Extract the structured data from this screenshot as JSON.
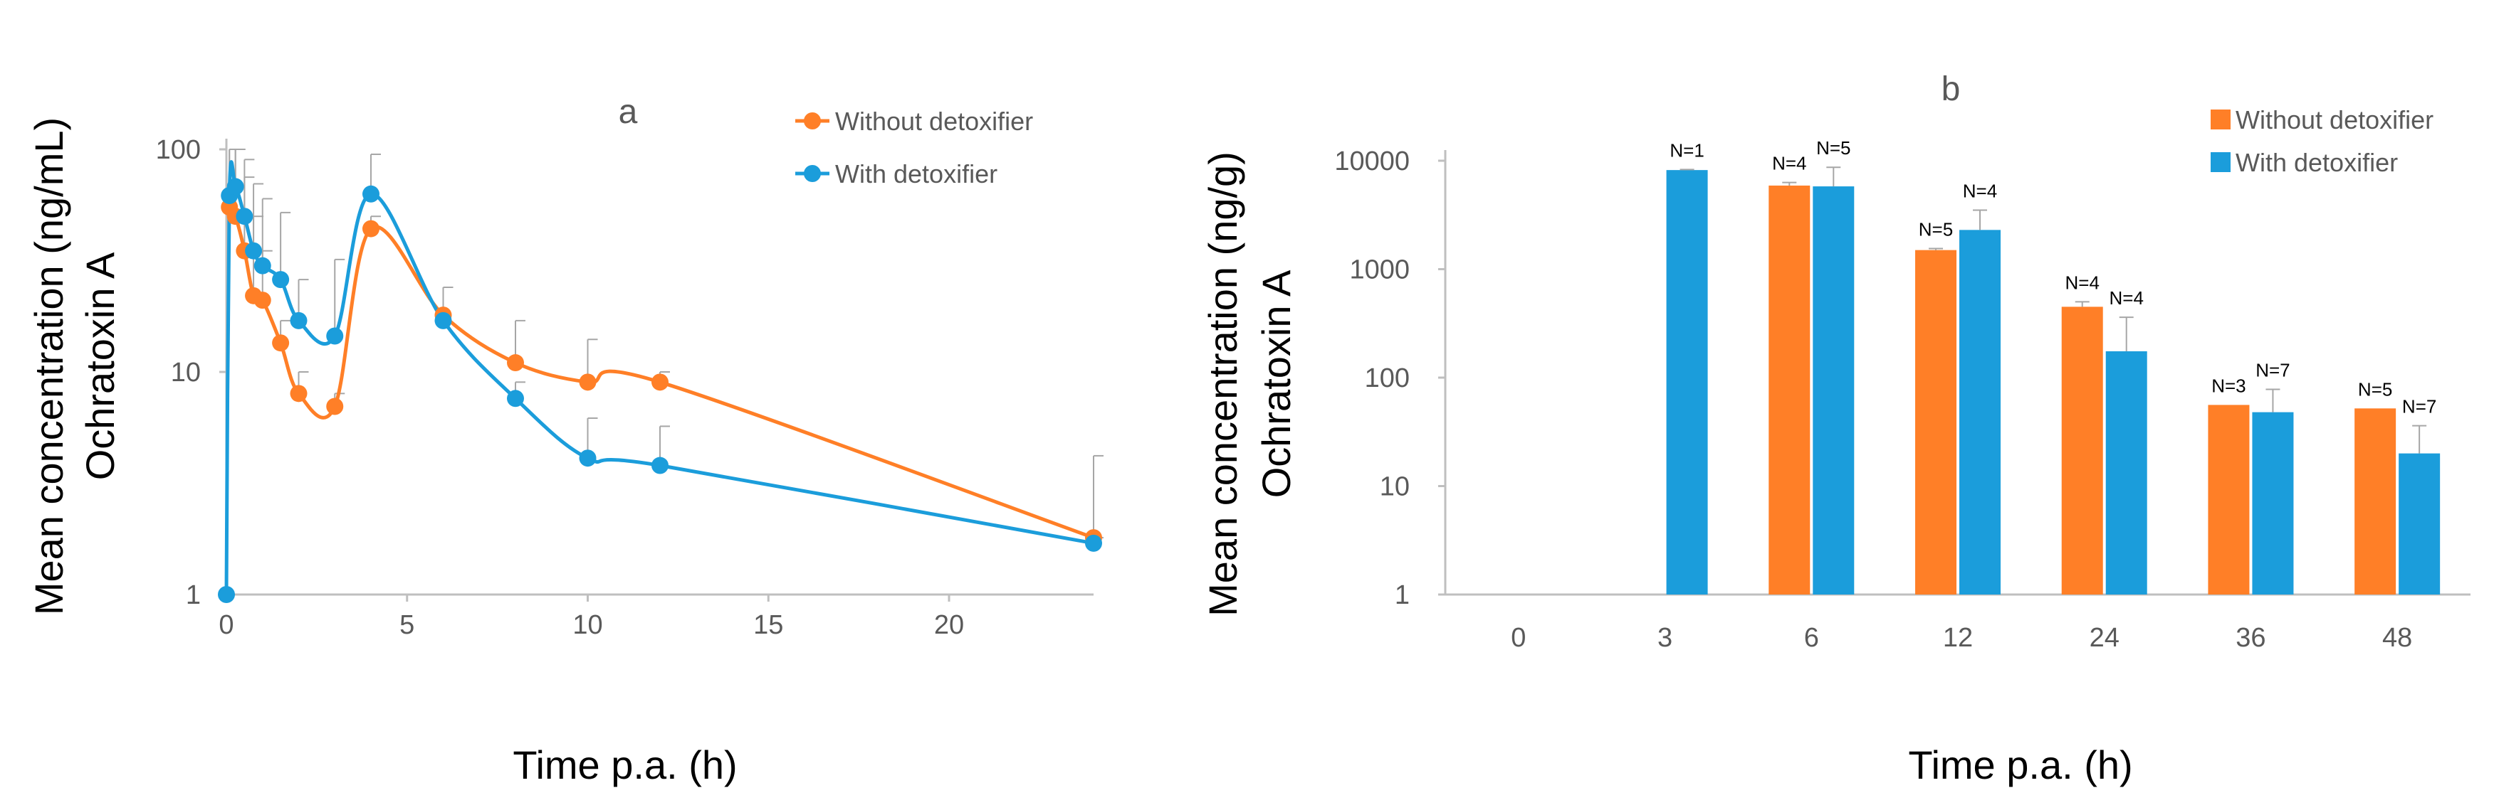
{
  "colors": {
    "without": "#FF7F27",
    "with": "#1B9DDB",
    "axis": "#BFBFBF",
    "err": "#A6A6A6"
  },
  "chart_data": [
    {
      "type": "line",
      "panel_label": "a",
      "ylabel_line1": "Mean concentration (ng/mL)",
      "ylabel_line2": "Ochratoxin A",
      "xlabel": "Time p.a. (h)",
      "yscale": "log",
      "ylim": [
        1,
        100
      ],
      "xlim": [
        0,
        24
      ],
      "x_ticks": [
        "0",
        "5",
        "10",
        "15",
        "20"
      ],
      "y_ticks": [
        "1",
        "10",
        "100"
      ],
      "legend_position": "top-right",
      "series": [
        {
          "name": "Without detoxifier",
          "x": [
            0.083,
            0.25,
            0.5,
            0.75,
            1,
            1.5,
            2,
            3,
            4,
            6,
            8,
            10,
            12,
            24
          ],
          "y": [
            55,
            50,
            35,
            22,
            21,
            13.5,
            8,
            7,
            44,
            18,
            11,
            9,
            9,
            1.8
          ],
          "err_top": [
            100,
            100,
            75,
            50,
            35,
            17,
            10,
            8,
            50,
            24,
            17,
            14,
            10,
            4.2
          ]
        },
        {
          "name": "With detoxifier",
          "x": [
            0,
            0.083,
            0.25,
            0.5,
            0.75,
            1,
            1.5,
            2,
            3,
            4,
            6,
            8,
            10,
            12,
            24
          ],
          "y": [
            1,
            62,
            68,
            50,
            35,
            30,
            26,
            17,
            14.5,
            63,
            17,
            7.6,
            4.1,
            3.8,
            1.7
          ],
          "err_top": [
            null,
            100,
            100,
            90,
            70,
            60,
            52,
            26,
            32,
            95,
            24,
            9,
            6.2,
            5.7,
            1.8
          ]
        }
      ]
    },
    {
      "type": "bar",
      "panel_label": "b",
      "ylabel_line1": "Mean concentration (ng/g)",
      "ylabel_line2": "Ochratoxin A",
      "xlabel": "Time p.a. (h)",
      "yscale": "log",
      "ylim": [
        1,
        10000
      ],
      "categories": [
        "0",
        "3",
        "6",
        "12",
        "24",
        "36",
        "48"
      ],
      "y_ticks": [
        "1",
        "10",
        "100",
        "1000",
        "10000"
      ],
      "legend_position": "top-right",
      "series": [
        {
          "name": "Without detoxifier",
          "values": [
            null,
            null,
            5900,
            1500,
            450,
            56,
            52
          ],
          "err_top": [
            null,
            null,
            6300,
            1550,
            500,
            null,
            null
          ],
          "n_labels": [
            "",
            "",
            "N=4",
            "N=5",
            "N=4",
            "N=3",
            "N=5"
          ]
        },
        {
          "name": "With detoxifier",
          "values": [
            null,
            8200,
            5800,
            2300,
            175,
            48,
            20
          ],
          "err_top": [
            null,
            8300,
            8700,
            3500,
            360,
            78,
            36
          ],
          "n_labels": [
            "",
            "N=1",
            "N=5",
            "N=4",
            "N=4",
            "N=7",
            "N=7"
          ]
        }
      ]
    }
  ]
}
